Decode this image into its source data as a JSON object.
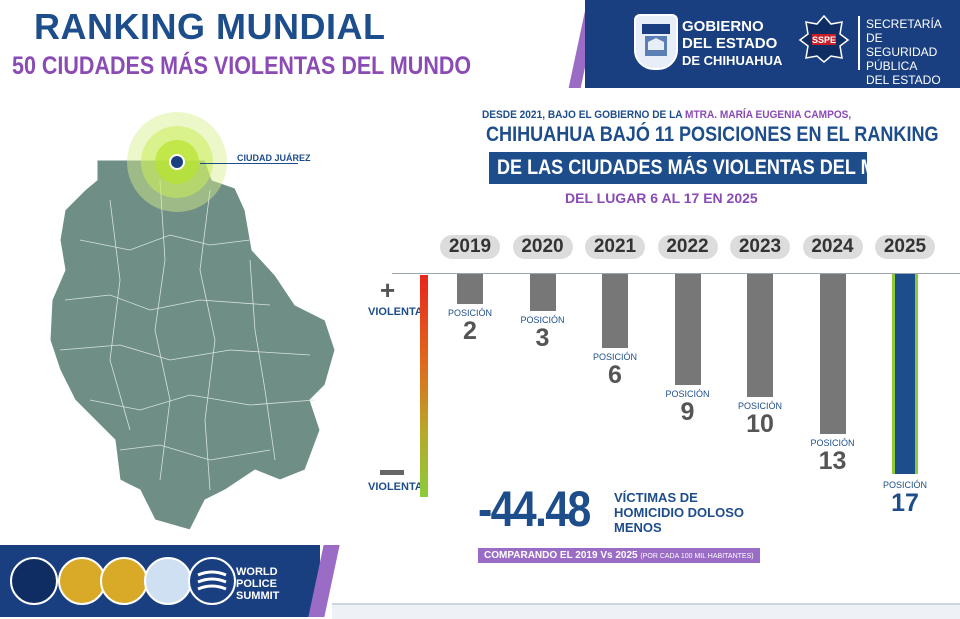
{
  "header": {
    "title": "RANKING MUNDIAL",
    "subtitle": "50 CIUDADES MÁS VIOLENTAS DEL MUNDO",
    "gov_line1": "GOBIERNO",
    "gov_line2": "DEL ESTADO",
    "gov_line3": "DE CHIHUAHUA",
    "sec_line1": "SECRETARÍA DE",
    "sec_line2": "SEGURIDAD PÚBLICA",
    "sec_line3": "DEL ESTADO",
    "sspe_logo_text": "SSPE"
  },
  "intro": {
    "prefix": "DESDE 2021, BAJO EL GOBIERNO DE LA ",
    "highlight": "MTRA. MARÍA EUGENIA CAMPOS,",
    "headline1": "CHIHUAHUA BAJÓ 11 POSICIONES EN EL RANKING",
    "headline2": "DE LAS CIUDADES MÁS VIOLENTAS DEL MUNDO:",
    "headline3": "DEL LUGAR 6 AL 17 EN 2025"
  },
  "map": {
    "city_label": "CIUDAD JUÁREZ"
  },
  "scale": {
    "plus": "+",
    "top_label": "VIOLENTA",
    "bottom_label": "VIOLENTA",
    "colors": {
      "most_violent": "#e8261c",
      "least_violent": "#8ccc3a"
    }
  },
  "chart_data": {
    "type": "bar",
    "categories": [
      "2019",
      "2020",
      "2021",
      "2022",
      "2023",
      "2024",
      "2025"
    ],
    "values": [
      2,
      3,
      6,
      9,
      10,
      13,
      17
    ],
    "position_label": "POSICIÓN",
    "bar_color": "#777777",
    "highlight_color": "#1e4d8c"
  },
  "stats": {
    "big_number": "-44.48",
    "victims_line1": "VÍCTIMAS DE",
    "victims_line2": "HOMICIDIO DOLOSO",
    "victims_line3": "MENOS",
    "compare_text": "COMPARANDO EL 2019 Vs 2025",
    "compare_note": "(POR CADA 100 MIL HABITANTES)"
  },
  "footer": {
    "summit_line1": "WORLD",
    "summit_line2": "POLICE",
    "summit_line3": "SUMMIT"
  }
}
